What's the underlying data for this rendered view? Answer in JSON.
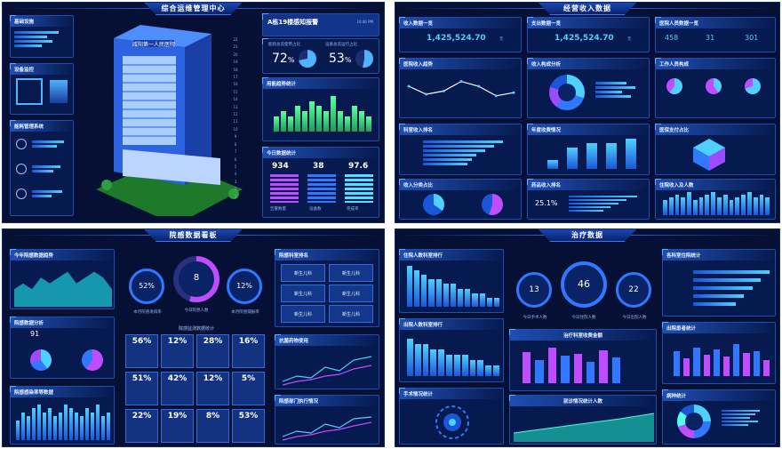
{
  "q1": {
    "title": "综合运维管理中心",
    "building_label": "咸阳第一人民医院",
    "right_title": "A栋19楼感知报警",
    "right_time": "10:46 PM",
    "gauge1": {
      "value": "72",
      "unit": "%",
      "label": "能耗总览使用占比"
    },
    "gauge2": {
      "value": "53",
      "unit": "%",
      "label": "设备总览运行占比"
    },
    "bar_panel_title": "用能趋势统计",
    "bar_values": [
      3,
      4,
      3,
      5,
      4,
      6,
      5,
      4,
      7,
      4,
      3,
      5,
      4,
      3
    ],
    "stat_panel_title": "今日数据统计",
    "stats": [
      {
        "value": "934",
        "label": "告警数量"
      },
      {
        "value": "38",
        "label": "设备数"
      },
      {
        "value": "97.6",
        "label": "完成率"
      }
    ],
    "left_panels": [
      "基础设施",
      "设备监控",
      "能耗管理系统"
    ],
    "floor_numbers": [
      "22",
      "21",
      "20",
      "19",
      "18",
      "17",
      "16",
      "15",
      "14",
      "13",
      "12",
      "11",
      "10",
      "9",
      "8",
      "7",
      "6",
      "5",
      "4",
      "3",
      "2",
      "1"
    ]
  },
  "q2": {
    "title": "经营收入数据",
    "cards": [
      {
        "title": "收入数据一览",
        "value": "1,425,524.70",
        "unit": "元"
      },
      {
        "title": "支出数据一览",
        "value": "1,425,524.70",
        "unit": "元"
      },
      {
        "title": "医院人员数据一览",
        "nums": [
          "458",
          "31",
          "301"
        ]
      }
    ],
    "panels": [
      "医院收入趋势",
      "收入构成分析",
      "工作人员构成",
      "科室收入排名",
      "年度收费情况",
      "医保支付占比",
      "收入分类占比",
      "药品收入排名",
      "住院收入及人数"
    ],
    "line_values": [
      3,
      2,
      2.4,
      3.6,
      3,
      1.8,
      2.2
    ],
    "pct": "25.1%",
    "bar_values": [
      2,
      5,
      6,
      6,
      7
    ],
    "right_bar_values": [
      6,
      7,
      8,
      7,
      9,
      6,
      7,
      8,
      9,
      7,
      8,
      6,
      7,
      8,
      9,
      7,
      8,
      7
    ]
  },
  "q3": {
    "title": "院感数据看板",
    "panels": [
      "今年院感数据趋势",
      "院感数据分析",
      "院感感染率等数据",
      "院感科室排名",
      "抗菌药物使用",
      "院感部门执行情况"
    ],
    "gauges": [
      {
        "value": "52%",
        "label": "本月院感发病率"
      },
      {
        "value": "8",
        "label": "今日院感人数"
      },
      {
        "value": "12%",
        "label": "本月院感漏报率"
      }
    ],
    "small_num": "91",
    "grid_title": "院感监测数据统计",
    "grid_values": [
      "56%",
      "12%",
      "28%",
      "16%",
      "51%",
      "42%",
      "12%",
      "5%",
      "22%",
      "19%",
      "8%",
      "53%"
    ],
    "tiles": [
      "新生儿科",
      "新生儿科",
      "新生儿科",
      "新生儿科",
      "新生儿科",
      "新生儿科"
    ],
    "area_values": [
      3,
      4,
      3,
      5,
      4,
      5,
      6,
      4,
      5,
      6,
      5,
      3
    ],
    "bar_values": [
      5,
      7,
      6,
      8,
      9,
      7,
      8,
      6,
      7,
      9,
      8,
      7,
      6,
      8,
      7,
      9,
      6,
      7
    ]
  },
  "q4": {
    "title": "治疗数据",
    "panels": [
      "住院人数科室排行",
      "出院人数科室排行",
      "手术情况统计",
      "今日手术科室",
      "各科室住院统计",
      "出院患者统计",
      "病种统计"
    ],
    "gauges": [
      {
        "value": "13",
        "label": "今日手术人数"
      },
      {
        "value": "46",
        "label": "今日住院人数"
      },
      {
        "value": "22",
        "label": "今日出院人数"
      }
    ],
    "mid_title": "治疗科室收费金额",
    "area_title": "就诊情况统计人数",
    "bar_values": [
      9,
      8,
      7,
      6,
      6,
      5,
      5,
      4,
      4,
      3,
      3,
      2,
      2
    ],
    "bar_values2": [
      7,
      6,
      6,
      5,
      5,
      4,
      4,
      4,
      3,
      3,
      2,
      2
    ],
    "hbar_values": [
      9,
      8,
      7,
      6,
      5
    ]
  }
}
